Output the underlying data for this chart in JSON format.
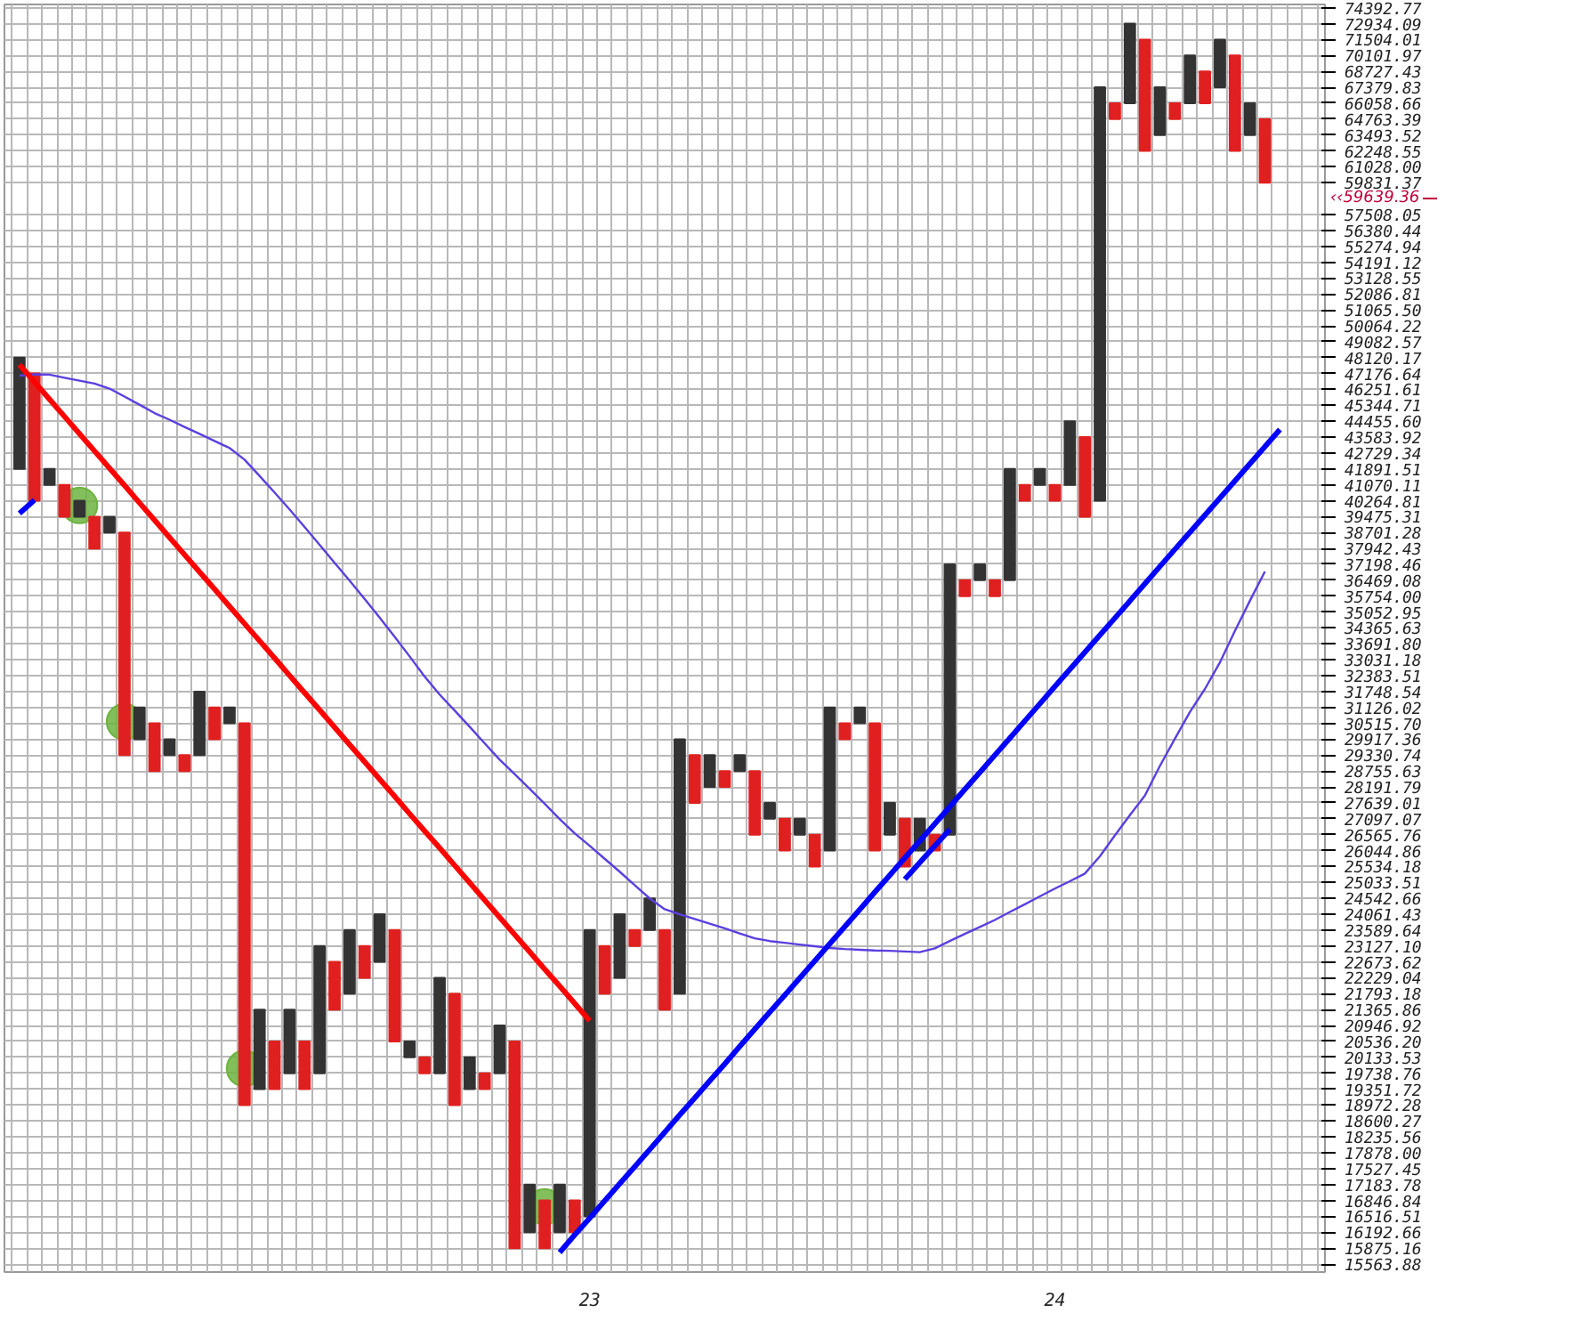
{
  "chart_data": {
    "type": "bar",
    "log": true,
    "grid": true,
    "categories": [
      null,
      null,
      null,
      null,
      null,
      null,
      null,
      null,
      null,
      null,
      null,
      null,
      null,
      null,
      null,
      null,
      null,
      null,
      null,
      null,
      null,
      null,
      null,
      null,
      null,
      null,
      null,
      null,
      null,
      null,
      null,
      null,
      null,
      null,
      null,
      null,
      null,
      null,
      "23",
      null,
      null,
      null,
      null,
      null,
      null,
      null,
      null,
      null,
      null,
      null,
      null,
      null,
      null,
      null,
      null,
      null,
      null,
      null,
      null,
      null,
      null,
      null,
      null,
      null,
      null,
      null,
      null,
      null,
      null,
      "24",
      null,
      null,
      null,
      null,
      null,
      null,
      null,
      null,
      null,
      null,
      null,
      null,
      null,
      null,
      null
    ],
    "ylim": [
      15410,
      74700
    ],
    "yticks": [
      15563.88,
      15875.16,
      16192.66,
      16516.51,
      16846.84,
      17183.78,
      17527.45,
      {
        "value": 17878,
        "label": "17878.00"
      },
      18235.56,
      18600.27,
      18972.28,
      19351.72,
      19738.76,
      20133.53,
      {
        "value": 20536.2,
        "label": "20536.20"
      },
      20946.92,
      21365.86,
      21793.18,
      22229.04,
      22673.62,
      {
        "value": 23127.1,
        "label": "23127.10"
      },
      23589.64,
      24061.43,
      24542.66,
      25033.51,
      25534.18,
      26044.86,
      26565.76,
      27097.07,
      27639.01,
      28191.79,
      28755.63,
      29330.74,
      29917.36,
      {
        "value": 30515.7,
        "label": "30515.70"
      },
      31126.02,
      31748.54,
      32383.51,
      33031.18,
      {
        "value": 33691.8,
        "label": "33691.80"
      },
      34365.63,
      35052.95,
      {
        "value": 35754,
        "label": "35754.00"
      },
      36469.08,
      37198.46,
      37942.43,
      38701.28,
      39475.31,
      40264.81,
      41070.11,
      41891.51,
      42729.34,
      43583.92,
      {
        "value": 44455.6,
        "label": "44455.60"
      },
      45344.71,
      46251.61,
      47176.64,
      48120.17,
      49082.57,
      50064.22,
      {
        "value": 51065.5,
        "label": "51065.50"
      },
      52086.81,
      53128.55,
      54191.12,
      55274.94,
      56380.44,
      57508.05,
      59831.37,
      {
        "value": 61028,
        "label": "61028.00"
      },
      62248.55,
      63493.52,
      64763.39,
      66058.66,
      67379.83,
      68727.43,
      70101.97,
      71504.01,
      72934.09,
      74392.77
    ],
    "annotations": [
      "‹‹59639.36"
    ],
    "series": [
      {
        "base": [
          41892,
          40265,
          41070,
          39475,
          39475,
          37942,
          38701,
          29331,
          29917,
          28756,
          29331,
          28756,
          29331,
          29917,
          30516,
          18972,
          19352,
          19352,
          19739,
          19352,
          19739,
          21366,
          21793,
          22229,
          22674,
          20536,
          20134,
          19739,
          19739,
          18972,
          19352,
          19352,
          19739,
          15875,
          16193,
          15875,
          16193,
          16193,
          16517,
          21793,
          22229,
          23127,
          23590,
          21366,
          21793,
          27639,
          28192,
          28192,
          28756,
          26566,
          27097,
          26045,
          26566,
          25534,
          26045,
          29917,
          30516,
          26045,
          26566,
          25534,
          26045,
          26045,
          26566,
          35754,
          36469,
          35754,
          36469,
          40265,
          41070,
          40265,
          41070,
          39475,
          40265,
          64763,
          66059,
          62249,
          63494,
          64763,
          66059,
          66059,
          67380,
          62249,
          63494,
          59831,
          null
        ],
        "values": [
          6228,
          6912,
          822,
          1595,
          790,
          1533,
          774,
          9370,
          1209,
          1760,
          586,
          575,
          2418,
          1209,
          610,
          11544,
          2014,
          1184,
          1627,
          1184,
          3388,
          1308,
          1797,
          898,
          1387,
          3054,
          402,
          395,
          2490,
          2821,
          782,
          387,
          1208,
          4661,
          991,
          972,
          991,
          654,
          7073,
          1334,
          1832,
          463,
          953,
          2224,
          8124,
          1692,
          1139,
          564,
          575,
          2190,
          542,
          1052,
          531,
          1032,
          5081,
          599,
          610,
          4471,
          1073,
          1563,
          1052,
          521,
          10632,
          715,
          729,
          715,
          5423,
          805,
          822,
          805,
          3386,
          4109,
          27115,
          1296,
          6875,
          9255,
          3886,
          1296,
          4043,
          2668,
          4124,
          7853,
          2565,
          4932,
          null
        ],
        "colors": [
          "#333333",
          "#e02020",
          "#333333",
          "#e02020",
          "#333333",
          "#e02020",
          "#333333",
          "#e02020",
          "#333333",
          "#e02020",
          "#333333",
          "#e02020",
          "#333333",
          "#e02020",
          "#333333",
          "#e02020",
          "#333333",
          "#e02020",
          "#333333",
          "#e02020",
          "#333333",
          "#e02020",
          "#333333",
          "#e02020",
          "#333333",
          "#e02020",
          "#333333",
          "#e02020",
          "#333333",
          "#e02020",
          "#333333",
          "#e02020",
          "#333333",
          "#e02020",
          "#333333",
          "#e02020",
          "#333333",
          "#e02020",
          "#333333",
          "#e02020",
          "#333333",
          "#e02020",
          "#333333",
          "#e02020",
          "#333333",
          "#e02020",
          "#333333",
          "#e02020",
          "#333333",
          "#e02020",
          "#333333",
          "#e02020",
          "#333333",
          "#e02020",
          "#333333",
          "#e02020",
          "#333333",
          "#e02020",
          "#333333",
          "#e02020",
          "#333333",
          "#e02020",
          "#333333",
          "#e02020",
          "#333333",
          "#e02020",
          "#333333",
          "#e02020",
          "#333333",
          "#e02020",
          "#333333",
          "#e02020",
          "#333333",
          "#e02020",
          "#333333",
          "#e02020",
          "#333333",
          "#e02020",
          "#333333",
          "#e02020",
          "#333333",
          "#e02020",
          "#333333",
          "#e02020",
          null
        ]
      },
      {
        "type": "line",
        "color": "#5b3fe0",
        "values": [
          47050,
          47130,
          47110,
          46930,
          46760,
          46590,
          46300,
          45840,
          45380,
          44910,
          44540,
          44140,
          43760,
          43380,
          43000,
          42380,
          41530,
          40680,
          39830,
          38970,
          38120,
          37270,
          36450,
          35630,
          34810,
          33990,
          33170,
          32350,
          31630,
          31010,
          30390,
          29770,
          29170,
          28650,
          28130,
          27610,
          27090,
          26610,
          26200,
          25780,
          25370,
          24950,
          24540,
          24210,
          24060,
          23920,
          23780,
          23640,
          23490,
          23350,
          23270,
          23220,
          23170,
          23120,
          23070,
          23040,
          23020,
          23000,
          22990,
          22970,
          22950,
          23060,
          23270,
          23480,
          23680,
          23890,
          24130,
          24360,
          24600,
          24840,
          25070,
          25310,
          25860,
          26540,
          27220,
          27890,
          28940,
          29940,
          30950,
          31850,
          32920,
          34240,
          35550,
          36870,
          null
        ]
      },
      {
        "type": "line",
        "color": "#ff0000",
        "values": [
          47700,
          46690,
          45690,
          44720,
          43770,
          42840,
          41930,
          41040,
          40160,
          39310,
          38470,
          37650,
          36850,
          36070,
          35300,
          34550,
          33820,
          33100,
          32390,
          31700,
          31030,
          30370,
          29720,
          29090,
          28470,
          27870,
          27270,
          26690,
          26130,
          25570,
          25030,
          24490,
          23970,
          23460,
          22960,
          22470,
          22000,
          21530,
          21070,
          null,
          null,
          null,
          null,
          null,
          null,
          null,
          null,
          null,
          null,
          null,
          null,
          null,
          null,
          null,
          null,
          null,
          null,
          null,
          null,
          null,
          null,
          null,
          null,
          null,
          null,
          null,
          null,
          null,
          null,
          null,
          null,
          null,
          null,
          null,
          null,
          null,
          null,
          null,
          null,
          null,
          null,
          null,
          null,
          null,
          null
        ]
      },
      {
        "type": "line",
        "color": "#0000ff",
        "values": [
          null,
          null,
          null,
          null,
          null,
          null,
          null,
          null,
          null,
          null,
          null,
          null,
          null,
          null,
          null,
          null,
          null,
          null,
          null,
          null,
          null,
          null,
          null,
          null,
          null,
          null,
          null,
          null,
          null,
          null,
          null,
          null,
          null,
          null,
          null,
          null,
          15790,
          16140,
          16480,
          16840,
          17200,
          17570,
          17950,
          18340,
          18740,
          19140,
          19550,
          19970,
          20410,
          20850,
          21300,
          21750,
          22220,
          22700,
          23190,
          23690,
          24200,
          24730,
          25260,
          25810,
          26360,
          26930,
          27510,
          28110,
          28710,
          29330,
          29960,
          30610,
          31270,
          31950,
          32640,
          33340,
          34060,
          34790,
          35540,
          36310,
          37100,
          37900,
          38710,
          39550,
          40400,
          41270,
          42160,
          43070,
          44000
        ]
      },
      {
        "type": "line",
        "color": "#0000ff",
        "values": [
          null,
          null,
          null,
          null,
          null,
          null,
          null,
          null,
          null,
          null,
          null,
          null,
          null,
          null,
          null,
          null,
          null,
          null,
          null,
          null,
          null,
          null,
          null,
          null,
          null,
          null,
          null,
          null,
          null,
          null,
          null,
          null,
          null,
          null,
          null,
          null,
          null,
          null,
          null,
          null,
          null,
          null,
          null,
          null,
          null,
          null,
          null,
          null,
          null,
          null,
          null,
          null,
          null,
          null,
          null,
          null,
          null,
          null,
          null,
          25130,
          25660,
          26200,
          26740,
          null,
          null,
          null,
          null,
          null,
          null,
          null,
          null,
          null,
          null,
          null,
          null,
          null,
          null,
          null,
          null,
          null,
          null,
          null,
          null,
          null,
          null
        ]
      },
      {
        "type": "line",
        "color": "#0000ff",
        "values": [
          39640,
          40300,
          null,
          null,
          null,
          null,
          null,
          null,
          null,
          null,
          null,
          null,
          null,
          null,
          null,
          null,
          null,
          null,
          null,
          null,
          null,
          null,
          null,
          null,
          null,
          null,
          null,
          null,
          null,
          null,
          null,
          null,
          null,
          null,
          null,
          null,
          null,
          null,
          null,
          null,
          null,
          null,
          null,
          null,
          null,
          null,
          null,
          null,
          null,
          null,
          null,
          null,
          null,
          null,
          null,
          null,
          null,
          null,
          null,
          null,
          null,
          null,
          null,
          null,
          null,
          null,
          null,
          null,
          null,
          null,
          null,
          null,
          null,
          null,
          null,
          null,
          null,
          null,
          null,
          null,
          null,
          null,
          null,
          null,
          null
        ]
      },
      {
        "type": "scatter",
        "marker": "circle",
        "color": "#6db33f",
        "values": [
          null,
          null,
          null,
          null,
          40030,
          null,
          null,
          30577,
          null,
          null,
          null,
          null,
          null,
          null,
          null,
          19856,
          null,
          null,
          null,
          null,
          null,
          null,
          null,
          null,
          null,
          null,
          null,
          null,
          null,
          null,
          null,
          null,
          null,
          null,
          null,
          16714,
          null,
          null,
          null,
          null,
          null,
          null,
          null,
          null,
          null,
          null,
          null,
          null,
          null,
          null,
          null,
          null,
          null,
          null,
          null,
          null,
          null,
          null,
          null,
          null,
          null,
          null,
          null,
          null,
          null,
          null,
          null,
          null,
          null,
          null,
          null,
          null,
          null,
          null,
          null,
          null,
          null,
          null,
          null,
          null,
          null,
          null,
          null,
          null,
          null
        ]
      }
    ]
  }
}
